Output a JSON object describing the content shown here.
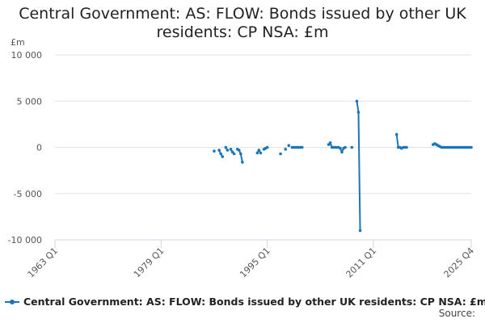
{
  "title_line1": "Central Government: AS: FLOW: Bonds issued by other UK",
  "title_line2": "residents: CP NSA: £m",
  "legend_label": "Central Government: AS: FLOW: Bonds issued by other UK residents: CP NSA: £m",
  "source_label": "Source:",
  "series_color": "#1a76b8",
  "chart_data": {
    "type": "line",
    "title": "Central Government: AS: FLOW: Bonds issued by other UK residents: CP NSA: £m",
    "ylabel": "£m",
    "ylim": [
      -10000,
      10000
    ],
    "xlim": [
      "1963 Q1",
      "2025 Q4"
    ],
    "y_ticks": [
      10000,
      5000,
      0,
      -5000,
      -10000
    ],
    "y_tick_labels": [
      "10 000",
      "5 000",
      "0",
      "-5 000",
      "-10 000"
    ],
    "x_tick_labels": [
      "1963 Q1",
      "1979 Q1",
      "1995 Q1",
      "2011 Q1",
      "2025 Q4"
    ],
    "grid": true,
    "legend_position": "bottom",
    "series": [
      {
        "name": "Central Government: AS: FLOW: Bonds issued by other UK residents: CP NSA: £m",
        "segments": [
          [
            [
              "1987 Q1",
              -400
            ]
          ],
          [
            [
              "1987 Q4",
              -300
            ],
            [
              "1988 Q1",
              -700
            ],
            [
              "1988 Q2",
              -1000
            ]
          ],
          [
            [
              "1988 Q4",
              0
            ],
            [
              "1989 Q1",
              -300
            ]
          ],
          [
            [
              "1989 Q3",
              -200
            ],
            [
              "1989 Q4",
              -500
            ],
            [
              "1990 Q1",
              -700
            ]
          ],
          [
            [
              "1990 Q3",
              -200
            ],
            [
              "1990 Q4",
              -300
            ],
            [
              "1991 Q1",
              -700
            ],
            [
              "1991 Q2",
              -1600
            ]
          ],
          [
            [
              "1993 Q3",
              -600
            ],
            [
              "1993 Q4",
              -300
            ],
            [
              "1994 Q1",
              -600
            ]
          ],
          [
            [
              "1994 Q3",
              -200
            ],
            [
              "1994 Q4",
              -100
            ],
            [
              "1995 Q1",
              0
            ]
          ],
          [
            [
              "1997 Q1",
              -700
            ]
          ],
          [
            [
              "1997 Q4",
              -200
            ]
          ],
          [
            [
              "1998 Q2",
              200
            ]
          ],
          [
            [
              "1998 Q4",
              0
            ],
            [
              "1999 Q1",
              0
            ],
            [
              "1999 Q2",
              0
            ],
            [
              "1999 Q3",
              0
            ],
            [
              "1999 Q4",
              0
            ],
            [
              "2000 Q1",
              0
            ],
            [
              "2000 Q2",
              0
            ]
          ],
          [
            [
              "2004 Q2",
              300
            ],
            [
              "2004 Q3",
              500
            ],
            [
              "2004 Q4",
              0
            ],
            [
              "2005 Q1",
              0
            ],
            [
              "2005 Q2",
              0
            ],
            [
              "2005 Q3",
              0
            ],
            [
              "2005 Q4",
              0
            ],
            [
              "2006 Q1",
              -100
            ],
            [
              "2006 Q2",
              -500
            ],
            [
              "2006 Q3",
              -100
            ]
          ],
          [
            [
              "2006 Q4",
              0
            ]
          ],
          [
            [
              "2007 Q4",
              0
            ]
          ],
          [
            [
              "2008 Q3",
              5000
            ],
            [
              "2008 Q4",
              3800
            ],
            [
              "2009 Q1",
              -9000
            ]
          ],
          [
            [
              "2014 Q3",
              1400
            ],
            [
              "2014 Q4",
              0
            ],
            [
              "2015 Q1",
              0
            ],
            [
              "2015 Q2",
              -100
            ],
            [
              "2015 Q3",
              0
            ],
            [
              "2015 Q4",
              0
            ],
            [
              "2016 Q1",
              0
            ]
          ],
          [
            [
              "2020 Q1",
              300
            ],
            [
              "2020 Q2",
              400
            ],
            [
              "2020 Q3",
              300
            ],
            [
              "2020 Q4",
              200
            ],
            [
              "2021 Q1",
              100
            ],
            [
              "2021 Q2",
              0
            ],
            [
              "2021 Q3",
              0
            ],
            [
              "2021 Q4",
              0
            ],
            [
              "2022 Q1",
              0
            ],
            [
              "2022 Q2",
              0
            ],
            [
              "2022 Q3",
              0
            ],
            [
              "2022 Q4",
              0
            ],
            [
              "2023 Q1",
              0
            ],
            [
              "2023 Q2",
              0
            ],
            [
              "2023 Q3",
              0
            ],
            [
              "2023 Q4",
              0
            ],
            [
              "2024 Q1",
              0
            ],
            [
              "2024 Q2",
              0
            ],
            [
              "2024 Q3",
              0
            ],
            [
              "2024 Q4",
              0
            ],
            [
              "2025 Q1",
              0
            ],
            [
              "2025 Q2",
              0
            ],
            [
              "2025 Q3",
              0
            ],
            [
              "2025 Q4",
              0
            ]
          ]
        ]
      }
    ]
  }
}
